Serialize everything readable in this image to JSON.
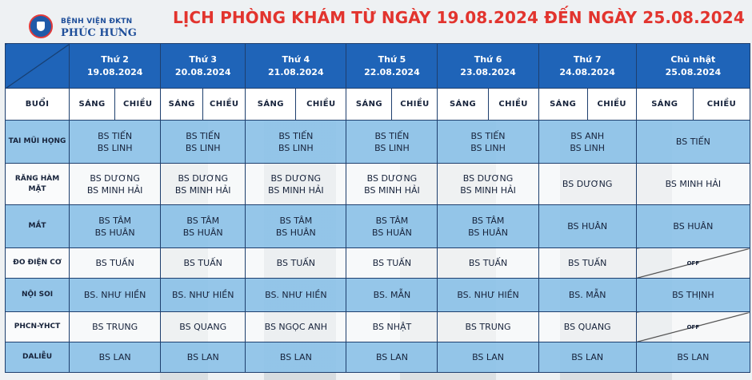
{
  "hospital": {
    "line1": "BỆNH VIỆN ĐKTN",
    "line2": "PHÚC HƯNG"
  },
  "title": "LỊCH PHÒNG KHÁM TỪ NGÀY 19.08.2024 ĐẾN NGÀY 25.08.2024",
  "colors": {
    "header": "#1f64b8",
    "title": "#e2342e",
    "row_a": "#8dc2e8"
  },
  "days": [
    {
      "name": "Thứ 2",
      "date": "19.08.2024"
    },
    {
      "name": "Thứ 3",
      "date": "20.08.2024"
    },
    {
      "name": "Thứ 4",
      "date": "21.08.2024"
    },
    {
      "name": "Thứ 5",
      "date": "22.08.2024"
    },
    {
      "name": "Thứ 6",
      "date": "23.08.2024"
    },
    {
      "name": "Thứ 7",
      "date": "24.08.2024"
    },
    {
      "name": "Chủ nhật",
      "date": "25.08.2024"
    }
  ],
  "session": {
    "label": "BUỔI",
    "morning": "SÁNG",
    "afternoon": "CHIỀU"
  },
  "rows": [
    {
      "name": "TAI MŨI HỌNG",
      "cells": [
        [
          "BS TIẾN",
          "BS LINH"
        ],
        [
          "BS TIẾN",
          "BS LINH"
        ],
        [
          "BS TIẾN",
          "BS LINH"
        ],
        [
          "BS TIẾN",
          "BS LINH"
        ],
        [
          "BS TIẾN",
          "BS LINH"
        ],
        [
          "BS ANH",
          "BS LINH"
        ],
        [
          "BS TIẾN"
        ]
      ]
    },
    {
      "name": "RĂNG HÀM MẶT",
      "cells": [
        [
          "BS DƯƠNG",
          "BS MINH HẢI"
        ],
        [
          "BS DƯƠNG",
          "BS MINH HẢI"
        ],
        [
          "BS DƯƠNG",
          "BS MINH HẢI"
        ],
        [
          "BS DƯƠNG",
          "BS MINH HẢI"
        ],
        [
          "BS DƯƠNG",
          "BS MINH HẢI"
        ],
        [
          "BS DƯƠNG"
        ],
        [
          "BS MINH HẢI"
        ]
      ]
    },
    {
      "name": "MẮT",
      "cells": [
        [
          "BS TÂM",
          "BS HUÂN"
        ],
        [
          "BS TÂM",
          "BS HUÂN"
        ],
        [
          "BS TÂM",
          "BS HUÂN"
        ],
        [
          "BS TÂM",
          "BS HUÂN"
        ],
        [
          "BS TÂM",
          "BS HUÂN"
        ],
        [
          "BS HUÂN"
        ],
        [
          "BS HUÂN"
        ]
      ]
    },
    {
      "name": "ĐO ĐIỆN CƠ",
      "cells": [
        [
          "BS TUẤN"
        ],
        [
          "BS TUẤN"
        ],
        [
          "BS TUẤN"
        ],
        [
          "BS TUẤN"
        ],
        [
          "BS TUẤN"
        ],
        [
          "BS TUẤN"
        ],
        [
          "OFF"
        ]
      ]
    },
    {
      "name": "NỘI SOI",
      "cells": [
        [
          "BS. NHƯ HIỀN"
        ],
        [
          "BS. NHƯ HIỀN"
        ],
        [
          "BS. NHƯ HIỀN"
        ],
        [
          "BS. MẪN"
        ],
        [
          "BS. NHƯ HIỀN"
        ],
        [
          "BS. MẪN"
        ],
        [
          "BS THỊNH"
        ]
      ]
    },
    {
      "name": "PHCN-YHCT",
      "cells": [
        [
          "BS TRUNG"
        ],
        [
          "BS QUANG"
        ],
        [
          "BS NGỌC ANH"
        ],
        [
          "BS NHẬT"
        ],
        [
          "BS TRUNG"
        ],
        [
          "BS QUANG"
        ],
        [
          "OFF"
        ]
      ]
    },
    {
      "name": "DALIỄU",
      "cells": [
        [
          "BS LAN"
        ],
        [
          "BS LAN"
        ],
        [
          "BS LAN"
        ],
        [
          "BS LAN"
        ],
        [
          "BS LAN"
        ],
        [
          "BS LAN"
        ],
        [
          "BS LAN"
        ]
      ]
    }
  ]
}
